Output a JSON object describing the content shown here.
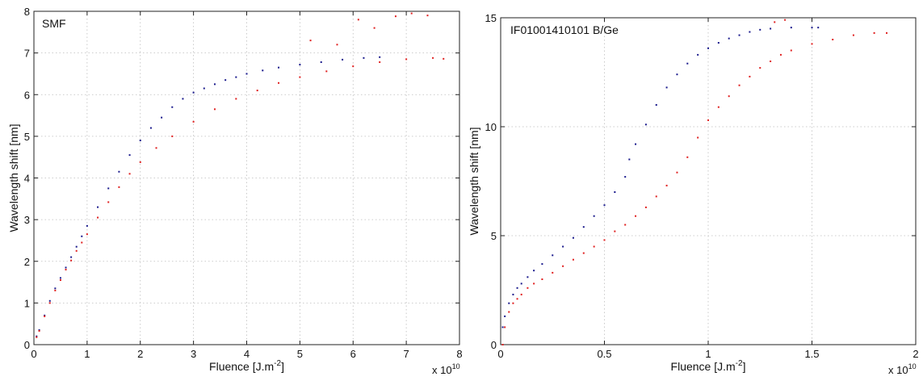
{
  "chart_data": [
    {
      "type": "scatter",
      "annotation": "SMF",
      "xlabel": "Fluence [J.m",
      "xlabel_sup": "-2",
      "xlabel_end": "]",
      "ylabel": "Wavelength shift [nm]",
      "x_multiplier": "x 10",
      "x_multiplier_exp": "10",
      "xlim": [
        0,
        8
      ],
      "ylim": [
        0,
        8
      ],
      "xticks": [
        "0",
        "1",
        "2",
        "3",
        "4",
        "5",
        "6",
        "7",
        "8"
      ],
      "yticks": [
        "0",
        "1",
        "2",
        "3",
        "4",
        "5",
        "6",
        "7",
        "8"
      ],
      "grid": true,
      "series": [
        {
          "color": "#1a1a8c",
          "x": [
            0.05,
            0.1,
            0.2,
            0.3,
            0.4,
            0.5,
            0.6,
            0.7,
            0.8,
            0.9,
            1.0,
            1.2,
            1.4,
            1.6,
            1.8,
            2.0,
            2.2,
            2.4,
            2.6,
            2.8,
            3.0,
            3.2,
            3.4,
            3.6,
            3.8,
            4.0,
            4.3,
            4.6,
            5.0,
            5.4,
            5.8,
            6.2,
            6.5
          ],
          "y": [
            0.2,
            0.35,
            0.7,
            1.05,
            1.35,
            1.6,
            1.85,
            2.1,
            2.35,
            2.6,
            2.85,
            3.3,
            3.75,
            4.15,
            4.55,
            4.9,
            5.2,
            5.45,
            5.7,
            5.9,
            6.05,
            6.15,
            6.25,
            6.35,
            6.42,
            6.5,
            6.58,
            6.65,
            6.72,
            6.78,
            6.84,
            6.88,
            6.9
          ]
        },
        {
          "color": "#e02020",
          "x": [
            0.05,
            0.1,
            0.2,
            0.3,
            0.4,
            0.5,
            0.6,
            0.7,
            0.8,
            0.9,
            1.0,
            1.2,
            1.4,
            1.6,
            1.8,
            2.0,
            2.3,
            2.6,
            3.0,
            3.4,
            3.8,
            4.2,
            4.6,
            5.0,
            5.5,
            6.0,
            6.5,
            7.0,
            7.5,
            7.7,
            5.2,
            5.7,
            6.1,
            6.4,
            6.8,
            7.1,
            7.4
          ],
          "y": [
            0.18,
            0.33,
            0.68,
            1.0,
            1.3,
            1.55,
            1.8,
            2.02,
            2.25,
            2.45,
            2.65,
            3.05,
            3.42,
            3.78,
            4.1,
            4.38,
            4.72,
            5.0,
            5.35,
            5.65,
            5.9,
            6.1,
            6.28,
            6.42,
            6.56,
            6.68,
            6.78,
            6.85,
            6.88,
            6.86,
            7.3,
            7.2,
            7.8,
            7.6,
            7.88,
            7.95,
            7.9
          ]
        }
      ]
    },
    {
      "type": "scatter",
      "annotation": "IF01001410101 B/Ge",
      "xlabel": "Fluence [J.m",
      "xlabel_sup": "-2",
      "xlabel_end": "]",
      "ylabel": "Wavelength shift [nm]",
      "x_multiplier": "x 10",
      "x_multiplier_exp": "10",
      "xlim": [
        0,
        2
      ],
      "ylim": [
        0,
        15
      ],
      "xticks": [
        "0",
        "0.5",
        "1",
        "1.5",
        "2"
      ],
      "xtick_values": [
        0,
        0.5,
        1,
        1.5,
        2
      ],
      "yticks": [
        "0",
        "5",
        "10",
        "15"
      ],
      "ytick_values": [
        0,
        5,
        10,
        15
      ],
      "grid": true,
      "series": [
        {
          "color": "#1a1a8c",
          "x": [
            0.01,
            0.02,
            0.04,
            0.06,
            0.08,
            0.1,
            0.13,
            0.16,
            0.2,
            0.25,
            0.3,
            0.35,
            0.4,
            0.45,
            0.5,
            0.55,
            0.6,
            0.62,
            0.65,
            0.7,
            0.75,
            0.8,
            0.85,
            0.9,
            0.95,
            1.0,
            1.05,
            1.1,
            1.15,
            1.2,
            1.25,
            1.3,
            1.4,
            1.5,
            1.53
          ],
          "y": [
            0.8,
            1.3,
            1.9,
            2.3,
            2.6,
            2.8,
            3.1,
            3.4,
            3.7,
            4.1,
            4.5,
            4.9,
            5.4,
            5.9,
            6.4,
            7.0,
            7.7,
            8.5,
            9.2,
            10.1,
            11.0,
            11.8,
            12.4,
            12.9,
            13.3,
            13.6,
            13.85,
            14.05,
            14.2,
            14.35,
            14.45,
            14.5,
            14.55,
            14.55,
            14.55
          ]
        },
        {
          "color": "#e02020",
          "x": [
            0.01,
            0.02,
            0.04,
            0.06,
            0.08,
            0.1,
            0.13,
            0.16,
            0.2,
            0.25,
            0.3,
            0.35,
            0.4,
            0.45,
            0.5,
            0.55,
            0.6,
            0.65,
            0.7,
            0.75,
            0.8,
            0.85,
            0.9,
            0.95,
            1.0,
            1.05,
            1.1,
            1.15,
            1.2,
            1.25,
            1.3,
            1.35,
            1.4,
            1.5,
            1.6,
            1.7,
            1.8,
            1.86,
            1.32,
            1.37
          ],
          "y": [
            0.0,
            0.8,
            1.5,
            1.9,
            2.1,
            2.3,
            2.6,
            2.8,
            3.0,
            3.3,
            3.6,
            3.9,
            4.2,
            4.5,
            4.8,
            5.2,
            5.5,
            5.9,
            6.3,
            6.8,
            7.3,
            7.9,
            8.6,
            9.5,
            10.3,
            10.9,
            11.4,
            11.9,
            12.3,
            12.7,
            13.0,
            13.3,
            13.5,
            13.8,
            14.0,
            14.2,
            14.3,
            14.3,
            14.8,
            14.9
          ]
        }
      ]
    }
  ]
}
